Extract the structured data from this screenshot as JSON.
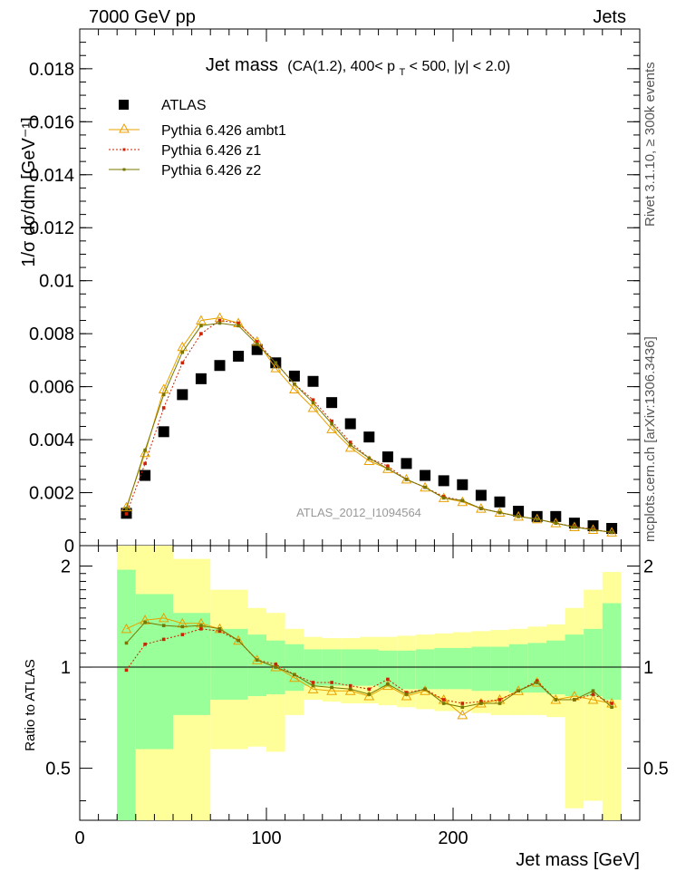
{
  "header": {
    "left": "7000 GeV pp",
    "right": "Jets"
  },
  "side": {
    "rivet": "Rivet 3.1.10, ≥ 300k events",
    "mcplots": "mcplots.cern.ch [arXiv:1306.3436]"
  },
  "watermark": "ATLAS_2012_I1094564",
  "chart_data": [
    {
      "type": "scatter",
      "title": "Jet mass",
      "subtitle": "(CA(1.2), 400< p",
      "subtitle_sub": "T",
      "subtitle_rest": " < 500, |y| < 2.0)",
      "ylabel": "1/σ dσ/dm [GeV⁻¹]",
      "xlim": [
        0,
        300
      ],
      "ylim": [
        0,
        0.0195
      ],
      "yticks": [
        0,
        0.002,
        0.004,
        0.006,
        0.008,
        0.01,
        0.012,
        0.014,
        0.016,
        0.018
      ],
      "ytick_labels": [
        "0",
        "0.002",
        "0.004",
        "0.006",
        "0.008",
        "0.01",
        "0.012",
        "0.014",
        "0.016",
        "0.018"
      ],
      "x": [
        25,
        35,
        45,
        55,
        65,
        75,
        85,
        95,
        105,
        115,
        125,
        135,
        145,
        155,
        165,
        175,
        185,
        195,
        205,
        215,
        225,
        235,
        245,
        255,
        265,
        275,
        285
      ],
      "series": [
        {
          "name": "ATLAS",
          "color": "#000000",
          "marker": "square",
          "values": [
            0.00122,
            0.00265,
            0.0043,
            0.0057,
            0.0063,
            0.0068,
            0.00715,
            0.0074,
            0.0069,
            0.0064,
            0.0062,
            0.0054,
            0.0046,
            0.0041,
            0.00335,
            0.0031,
            0.00265,
            0.00245,
            0.0023,
            0.0019,
            0.00165,
            0.0013,
            0.0011,
            0.0011,
            0.00085,
            0.00075,
            0.00065
          ]
        },
        {
          "name": "Pythia 6.426 ambt1",
          "color": "#e8a000",
          "marker": "triangle",
          "values": [
            0.00145,
            0.0035,
            0.0059,
            0.0075,
            0.0085,
            0.0086,
            0.0084,
            0.0077,
            0.0067,
            0.0059,
            0.0052,
            0.0044,
            0.0037,
            0.0032,
            0.0029,
            0.0025,
            0.0022,
            0.0018,
            0.00165,
            0.0014,
            0.00125,
            0.0011,
            0.001,
            0.00085,
            0.0007,
            0.0006,
            0.0005
          ]
        },
        {
          "name": "Pythia 6.426 z1",
          "color": "#cc2200",
          "marker": "dot",
          "values": [
            0.0012,
            0.0031,
            0.0052,
            0.0069,
            0.008,
            0.0085,
            0.0084,
            0.0077,
            0.0069,
            0.0061,
            0.0055,
            0.0047,
            0.0039,
            0.0033,
            0.003,
            0.0025,
            0.0022,
            0.00185,
            0.0017,
            0.0014,
            0.00125,
            0.0011,
            0.001,
            0.00085,
            0.00072,
            0.00062,
            0.0005
          ]
        },
        {
          "name": "Pythia 6.426 z2",
          "color": "#777700",
          "marker": "dot",
          "values": [
            0.0014,
            0.0036,
            0.0057,
            0.0073,
            0.0083,
            0.0084,
            0.0083,
            0.0076,
            0.0069,
            0.0061,
            0.0054,
            0.0046,
            0.0038,
            0.0033,
            0.0029,
            0.0025,
            0.0022,
            0.0018,
            0.0017,
            0.0014,
            0.00125,
            0.0011,
            0.001,
            0.00085,
            0.0007,
            0.0006,
            0.0005
          ]
        }
      ]
    },
    {
      "type": "scatter",
      "ylabel": "Ratio to ATLAS",
      "xlabel": "Jet mass [GeV]",
      "xlim": [
        0,
        300
      ],
      "ylim": [
        0.35,
        2.3
      ],
      "xticks": [
        0,
        100,
        200
      ],
      "xtick_labels": [
        "0",
        "100",
        "200"
      ],
      "yticks": [
        0.5,
        1,
        2
      ],
      "ytick_labels": [
        "0.5",
        "1",
        "2"
      ],
      "bands": {
        "edges": [
          20,
          30,
          50,
          70,
          90,
          100,
          110,
          120,
          130,
          140,
          150,
          160,
          170,
          180,
          190,
          200,
          210,
          220,
          230,
          240,
          250,
          260,
          270,
          280,
          290
        ],
        "inner_color": "#99ff99",
        "outer_color": "#ffff99",
        "inner_lo": [
          0.35,
          0.57,
          0.72,
          0.8,
          0.82,
          0.83,
          0.85,
          0.88,
          0.88,
          0.88,
          0.88,
          0.87,
          0.86,
          0.86,
          0.86,
          0.86,
          0.85,
          0.85,
          0.84,
          0.84,
          0.83,
          0.82,
          0.82,
          0.8
        ],
        "inner_hi": [
          1.95,
          1.65,
          1.45,
          1.3,
          1.25,
          1.2,
          1.17,
          1.13,
          1.13,
          1.13,
          1.13,
          1.12,
          1.12,
          1.13,
          1.14,
          1.14,
          1.15,
          1.15,
          1.17,
          1.18,
          1.2,
          1.25,
          1.3,
          1.55
        ],
        "outer_lo": [
          0.35,
          0.35,
          0.35,
          0.57,
          0.58,
          0.56,
          0.72,
          0.8,
          0.79,
          0.78,
          0.78,
          0.77,
          0.76,
          0.75,
          0.74,
          0.74,
          0.73,
          0.72,
          0.72,
          0.72,
          0.71,
          0.38,
          0.4,
          0.35
        ],
        "outer_hi": [
          2.3,
          2.3,
          2.1,
          1.7,
          1.5,
          1.45,
          1.3,
          1.23,
          1.22,
          1.22,
          1.23,
          1.23,
          1.24,
          1.25,
          1.26,
          1.27,
          1.28,
          1.29,
          1.3,
          1.32,
          1.34,
          1.5,
          1.7,
          1.92
        ]
      },
      "series": [
        {
          "name": "Pythia 6.426 ambt1",
          "color": "#e8a000",
          "marker": "triangle",
          "values": [
            1.3,
            1.38,
            1.4,
            1.35,
            1.35,
            1.3,
            1.2,
            1.05,
            1.0,
            0.93,
            0.86,
            0.85,
            0.85,
            0.82,
            0.88,
            0.82,
            0.85,
            0.8,
            0.72,
            0.78,
            0.8,
            0.85,
            0.9,
            0.8,
            0.82,
            0.8,
            0.78
          ]
        },
        {
          "name": "Pythia 6.426 z1",
          "color": "#cc2200",
          "marker": "dot",
          "values": [
            0.98,
            1.17,
            1.21,
            1.25,
            1.3,
            1.28,
            1.2,
            1.05,
            1.02,
            0.95,
            0.9,
            0.9,
            0.88,
            0.86,
            0.92,
            0.84,
            0.86,
            0.8,
            0.78,
            0.79,
            0.8,
            0.85,
            0.91,
            0.8,
            0.8,
            0.83,
            0.78
          ]
        },
        {
          "name": "Pythia 6.426 z2",
          "color": "#777700",
          "marker": "dot",
          "values": [
            1.18,
            1.36,
            1.33,
            1.32,
            1.33,
            1.3,
            1.2,
            1.05,
            1.0,
            0.95,
            0.88,
            0.87,
            0.86,
            0.83,
            0.89,
            0.83,
            0.86,
            0.78,
            0.76,
            0.78,
            0.78,
            0.85,
            0.9,
            0.8,
            0.8,
            0.85,
            0.76
          ]
        }
      ]
    }
  ]
}
